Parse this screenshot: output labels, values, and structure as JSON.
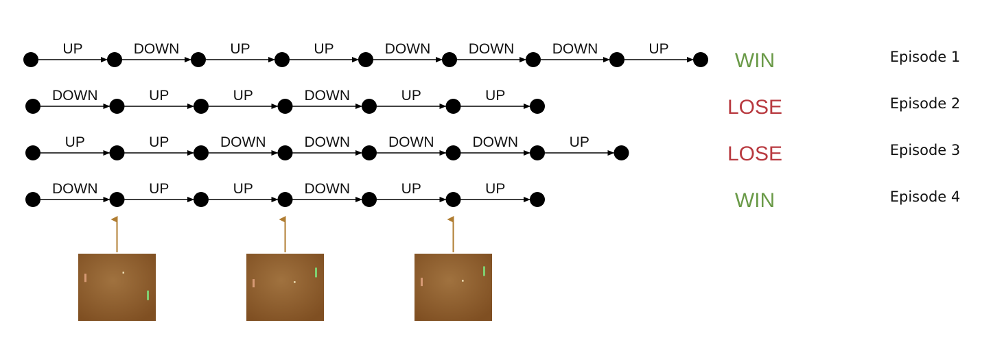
{
  "episodes": [
    {
      "label": "Episode 1",
      "outcome": "WIN",
      "actions": [
        "UP",
        "DOWN",
        "UP",
        "UP",
        "DOWN",
        "DOWN",
        "DOWN",
        "UP"
      ]
    },
    {
      "label": "Episode 2",
      "outcome": "LOSE",
      "actions": [
        "DOWN",
        "UP",
        "UP",
        "DOWN",
        "UP",
        "UP"
      ]
    },
    {
      "label": "Episode 3",
      "outcome": "LOSE",
      "actions": [
        "UP",
        "UP",
        "DOWN",
        "DOWN",
        "DOWN",
        "DOWN",
        "UP"
      ]
    },
    {
      "label": "Episode 4",
      "outcome": "WIN",
      "actions": [
        "DOWN",
        "UP",
        "UP",
        "DOWN",
        "UP",
        "UP"
      ]
    }
  ],
  "outcome_colors": {
    "WIN": "#6a9a48",
    "LOSE": "#b8393f"
  },
  "frame_pointers": [
    {
      "episode": 4,
      "state": 2,
      "ball": [
        0.58,
        0.28
      ],
      "left_paddle": 0.36,
      "right_paddle": 0.62
    },
    {
      "episode": 4,
      "state": 4,
      "ball": [
        0.62,
        0.42
      ],
      "left_paddle": 0.44,
      "right_paddle": 0.28
    },
    {
      "episode": 4,
      "state": 6,
      "ball": [
        0.62,
        0.4
      ],
      "left_paddle": 0.42,
      "right_paddle": 0.26
    }
  ],
  "colors": {
    "node": "#000000",
    "arrow": "#000000",
    "pointer": "#b07d32",
    "screen": "#8e5a2a",
    "left_paddle": "#d79a75",
    "right_paddle": "#7fcf70",
    "ball": "#efe1b8"
  }
}
